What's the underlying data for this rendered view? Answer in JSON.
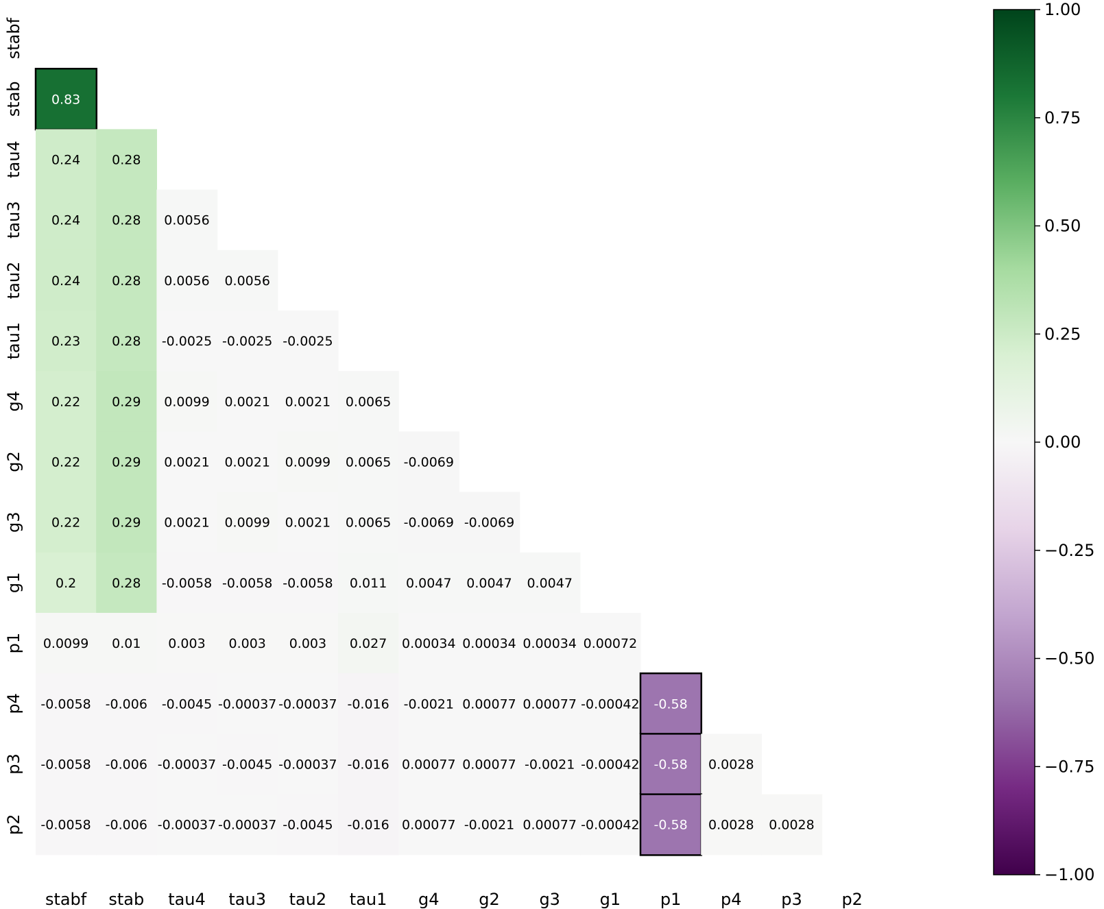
{
  "chart_data": {
    "type": "heatmap",
    "x_labels": [
      "stabf",
      "stab",
      "tau4",
      "tau3",
      "tau2",
      "tau1",
      "g4",
      "g2",
      "g3",
      "g1",
      "p1",
      "p4",
      "p3",
      "p2"
    ],
    "y_labels": [
      "stabf",
      "stab",
      "tau4",
      "tau3",
      "tau2",
      "tau1",
      "g4",
      "g2",
      "g3",
      "g1",
      "p1",
      "p4",
      "p3",
      "p2"
    ],
    "values": [
      [],
      [
        "0.83"
      ],
      [
        "0.24",
        "0.28"
      ],
      [
        "0.24",
        "0.28",
        "0.0056"
      ],
      [
        "0.24",
        "0.28",
        "0.0056",
        "0.0056"
      ],
      [
        "0.23",
        "0.28",
        "-0.0025",
        "-0.0025",
        "-0.0025"
      ],
      [
        "0.22",
        "0.29",
        "0.0099",
        "0.0021",
        "0.0021",
        "0.0065"
      ],
      [
        "0.22",
        "0.29",
        "0.0021",
        "0.0021",
        "0.0099",
        "0.0065",
        "-0.0069"
      ],
      [
        "0.22",
        "0.29",
        "0.0021",
        "0.0099",
        "0.0021",
        "0.0065",
        "-0.0069",
        "-0.0069"
      ],
      [
        "0.2",
        "0.28",
        "-0.0058",
        "-0.0058",
        "-0.0058",
        "0.011",
        "0.0047",
        "0.0047",
        "0.0047"
      ],
      [
        "0.0099",
        "0.01",
        "0.003",
        "0.003",
        "0.003",
        "0.027",
        "0.00034",
        "0.00034",
        "0.00034",
        "0.00072"
      ],
      [
        "-0.0058",
        "-0.006",
        "-0.0045",
        "-0.00037",
        "-0.00037",
        "-0.016",
        "-0.0021",
        "0.00077",
        "0.00077",
        "-0.00042",
        "-0.58"
      ],
      [
        "-0.0058",
        "-0.006",
        "-0.00037",
        "-0.0045",
        "-0.00037",
        "-0.016",
        "0.00077",
        "0.00077",
        "-0.0021",
        "-0.00042",
        "-0.58",
        "0.0028"
      ],
      [
        "-0.0058",
        "-0.006",
        "-0.00037",
        "-0.00037",
        "-0.0045",
        "-0.016",
        "0.00077",
        "-0.0021",
        "0.00077",
        "-0.00042",
        "-0.58",
        "0.0028",
        "0.0028"
      ]
    ],
    "colorbar": {
      "range": [
        -1.0,
        1.0
      ],
      "ticks": [
        1.0,
        0.75,
        0.5,
        0.25,
        0.0,
        -0.25,
        -0.5,
        -0.75,
        -1.0
      ],
      "tick_labels": [
        "1.00",
        "0.75",
        "0.50",
        "0.25",
        "0.00",
        "−0.25",
        "−0.50",
        "−0.75",
        "−1.00"
      ],
      "colormap": "PRGn",
      "stops": [
        "#00441b",
        "#1b7837",
        "#5aae61",
        "#a6dba0",
        "#d9f0d3",
        "#f7f7f7",
        "#e7d4e8",
        "#c2a5cf",
        "#9970ab",
        "#762a83",
        "#40004b"
      ]
    },
    "highlight_border_color": "#000000"
  }
}
